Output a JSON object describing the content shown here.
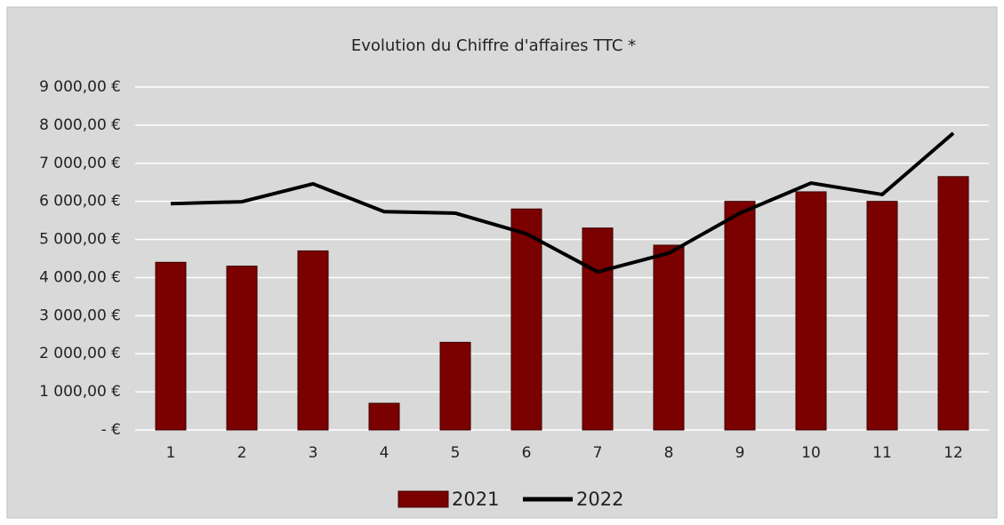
{
  "chart_data": {
    "type": "bar",
    "title": "Evolution du Chiffre d'affaires TTC *",
    "categories": [
      "1",
      "2",
      "3",
      "4",
      "5",
      "6",
      "7",
      "8",
      "9",
      "10",
      "11",
      "12"
    ],
    "series": [
      {
        "name": "2021",
        "type": "bar",
        "color": "#7b0000",
        "values": [
          4400,
          4300,
          4700,
          700,
          2300,
          5800,
          5300,
          4850,
          6000,
          6250,
          6000,
          6650
        ]
      },
      {
        "name": "2022",
        "type": "line",
        "color": "#000000",
        "values": [
          5940,
          5990,
          6460,
          5730,
          5690,
          5150,
          4150,
          4640,
          5690,
          6480,
          6180,
          7790
        ]
      }
    ],
    "ylim": [
      0,
      9000
    ],
    "yticks": [
      {
        "value": 0,
        "label": "-   €"
      },
      {
        "value": 1000,
        "label": "1 000,00 €"
      },
      {
        "value": 2000,
        "label": "2 000,00 €"
      },
      {
        "value": 3000,
        "label": "3 000,00 €"
      },
      {
        "value": 4000,
        "label": "4 000,00 €"
      },
      {
        "value": 5000,
        "label": "5 000,00 €"
      },
      {
        "value": 6000,
        "label": "6 000,00 €"
      },
      {
        "value": 7000,
        "label": "7 000,00 €"
      },
      {
        "value": 8000,
        "label": "8 000,00 €"
      },
      {
        "value": 9000,
        "label": "9 000,00 €"
      }
    ],
    "grid": true,
    "legend": "bottom"
  }
}
